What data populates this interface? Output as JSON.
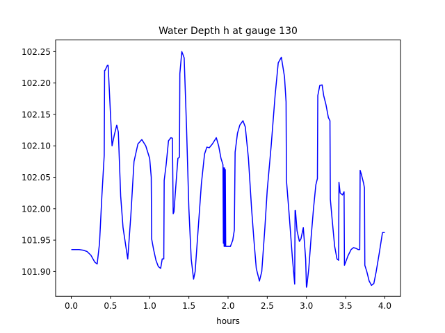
{
  "chart_data": {
    "type": "line",
    "title": "Water Depth h at gauge 130",
    "xlabel": "hours",
    "ylabel": "",
    "xlim": [
      -0.2,
      4.2
    ],
    "ylim": [
      101.8605,
      102.2685
    ],
    "xticks": [
      0.0,
      0.5,
      1.0,
      1.5,
      2.0,
      2.5,
      3.0,
      3.5,
      4.0
    ],
    "xtick_labels": [
      "0.0",
      "0.5",
      "1.0",
      "1.5",
      "2.0",
      "2.5",
      "3.0",
      "3.5",
      "4.0"
    ],
    "yticks": [
      101.9,
      101.95,
      102.0,
      102.05,
      102.1,
      102.15,
      102.2,
      102.25
    ],
    "ytick_labels": [
      "101.90",
      "101.95",
      "102.00",
      "102.05",
      "102.10",
      "102.15",
      "102.20",
      "102.25"
    ],
    "grid": false,
    "colors": {
      "series": "#0000ff"
    },
    "series": [
      {
        "x": [
          0.0,
          0.1,
          0.15,
          0.2,
          0.25,
          0.3,
          0.33,
          0.36,
          0.39,
          0.42,
          0.425,
          0.43,
          0.46,
          0.47,
          0.5,
          0.52,
          0.55,
          0.58,
          0.6,
          0.63,
          0.66,
          0.69,
          0.72,
          0.76,
          0.8,
          0.85,
          0.9,
          0.95,
          1.0,
          1.02,
          1.025,
          1.05,
          1.08,
          1.11,
          1.14,
          1.16,
          1.18,
          1.185,
          1.21,
          1.24,
          1.27,
          1.29,
          1.3,
          1.31,
          1.33,
          1.36,
          1.38,
          1.385,
          1.41,
          1.44,
          1.47,
          1.5,
          1.53,
          1.56,
          1.58,
          1.62,
          1.66,
          1.7,
          1.73,
          1.76,
          1.8,
          1.85,
          1.88,
          1.91,
          1.935,
          1.94,
          1.945,
          1.95,
          1.955,
          1.96,
          1.965,
          1.97,
          2.0,
          2.03,
          2.06,
          2.08,
          2.09,
          2.12,
          2.15,
          2.19,
          2.22,
          2.26,
          2.3,
          2.33,
          2.36,
          2.4,
          2.43,
          2.47,
          2.5,
          2.55,
          2.6,
          2.64,
          2.68,
          2.72,
          2.74,
          2.745,
          2.78,
          2.82,
          2.85,
          2.855,
          2.86,
          2.88,
          2.91,
          2.93,
          2.96,
          2.99,
          3.0,
          3.005,
          3.03,
          3.06,
          3.09,
          3.12,
          3.14,
          3.145,
          3.17,
          3.2,
          3.22,
          3.25,
          3.28,
          3.3,
          3.305,
          3.33,
          3.36,
          3.39,
          3.41,
          3.415,
          3.43,
          3.46,
          3.48,
          3.485,
          3.5,
          3.53,
          3.57,
          3.6,
          3.63,
          3.66,
          3.68,
          3.685,
          3.7,
          3.73,
          3.74,
          3.745,
          3.77,
          3.8,
          3.83,
          3.86,
          3.89,
          3.93,
          3.97,
          4.0
        ],
        "y": [
          101.935,
          101.935,
          101.934,
          101.932,
          101.926,
          101.915,
          101.912,
          101.945,
          102.02,
          102.085,
          102.22,
          102.22,
          102.228,
          102.228,
          102.15,
          102.1,
          102.118,
          102.133,
          102.122,
          102.02,
          101.97,
          101.945,
          101.92,
          101.99,
          102.075,
          102.103,
          102.11,
          102.1,
          102.08,
          102.05,
          101.952,
          101.935,
          101.918,
          101.908,
          101.905,
          101.92,
          101.92,
          102.045,
          102.07,
          102.108,
          102.113,
          102.112,
          101.992,
          101.995,
          102.03,
          102.08,
          102.082,
          102.215,
          102.25,
          102.24,
          102.13,
          102.0,
          101.92,
          101.888,
          101.9,
          101.97,
          102.04,
          102.087,
          102.098,
          102.097,
          102.103,
          102.113,
          102.1,
          102.08,
          102.07,
          101.945,
          102.065,
          101.94,
          102.065,
          101.94,
          102.062,
          101.94,
          101.94,
          101.94,
          101.95,
          101.966,
          102.09,
          102.12,
          102.133,
          102.14,
          102.13,
          102.08,
          102.0,
          101.95,
          101.905,
          101.885,
          101.9,
          101.97,
          102.03,
          102.1,
          102.18,
          102.232,
          102.241,
          102.21,
          102.17,
          102.045,
          101.99,
          101.923,
          101.88,
          101.997,
          101.997,
          101.965,
          101.948,
          101.952,
          101.97,
          101.92,
          101.875,
          101.877,
          101.905,
          101.955,
          102.0,
          102.038,
          102.048,
          102.18,
          102.196,
          102.197,
          102.18,
          102.165,
          102.145,
          102.14,
          102.015,
          101.98,
          101.94,
          101.92,
          101.918,
          102.042,
          102.025,
          102.022,
          102.027,
          101.91,
          101.915,
          101.925,
          101.935,
          101.938,
          101.937,
          101.935,
          101.935,
          102.061,
          102.055,
          102.04,
          102.033,
          101.91,
          101.9,
          101.885,
          101.878,
          101.881,
          101.9,
          101.93,
          101.962,
          101.962
        ]
      }
    ]
  }
}
